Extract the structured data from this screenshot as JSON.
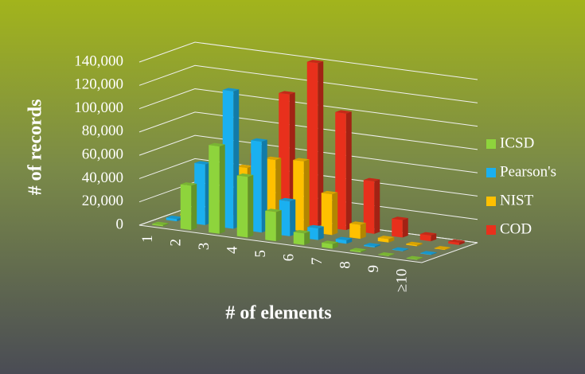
{
  "chart_data": {
    "type": "bar3d",
    "x_label": "# of elements",
    "y_label": "# of records",
    "categories": [
      "1",
      "2",
      "3",
      "4",
      "5",
      "6",
      "7",
      "8",
      "9",
      "≥10"
    ],
    "series": [
      {
        "name": "ICSD",
        "color": "#8ed43c",
        "values": [
          1000,
          38000,
          75000,
          52000,
          25000,
          10000,
          4000,
          1000,
          500,
          500
        ]
      },
      {
        "name": "Pearson's",
        "color": "#1ab0f0",
        "values": [
          2000,
          52000,
          118000,
          78000,
          30000,
          10000,
          3000,
          1000,
          500,
          500
        ]
      },
      {
        "name": "NIST",
        "color": "#ffc000",
        "values": [
          1000,
          15000,
          48000,
          58000,
          60000,
          35000,
          12000,
          3000,
          1000,
          500
        ]
      },
      {
        "name": "COD",
        "color": "#e8301c",
        "values": [
          1000,
          15000,
          55000,
          110000,
          140000,
          100000,
          45000,
          15000,
          5000,
          2000
        ]
      }
    ],
    "ylim": [
      0,
      140000
    ],
    "yticks": [
      0,
      {
        "value": 20000,
        "label": "20,000"
      },
      {
        "value": 40000,
        "label": "40,000"
      },
      {
        "value": 60000,
        "label": "60,000"
      },
      {
        "value": 80000,
        "label": "80,000"
      },
      {
        "value": 100000,
        "label": "100,000"
      },
      {
        "value": 120000,
        "label": "120,000"
      },
      {
        "value": 140000,
        "label": "140,000"
      }
    ],
    "grid": true,
    "legend": "right"
  }
}
